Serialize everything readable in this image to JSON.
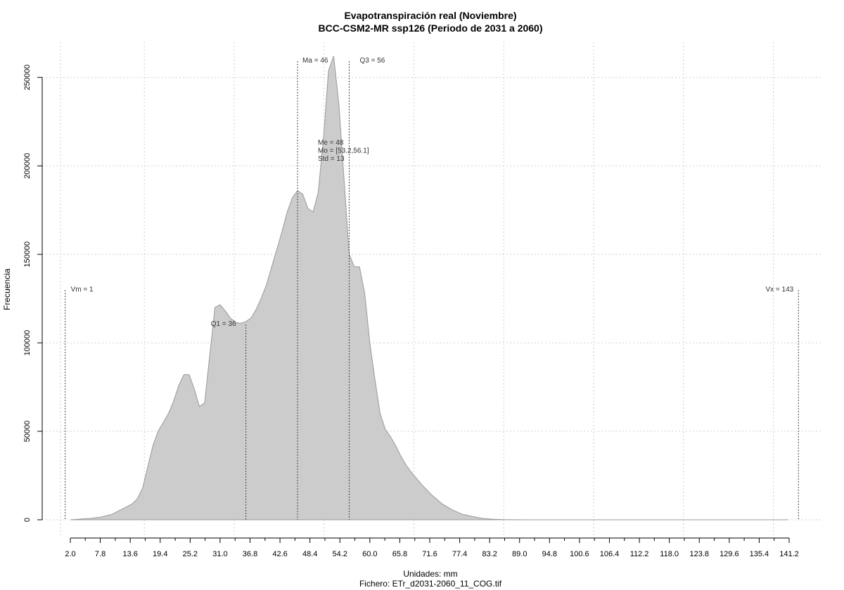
{
  "chart_data": {
    "type": "area",
    "title": "Evapotranspiración real (Noviembre)",
    "subtitle": "BCC-CSM2-MR ssp126 (Periodo de 2031 a 2060)",
    "xlabel": "Unidades: mm",
    "caption": "Fichero: ETr_d2031-2060_11_COG.tif",
    "ylabel": "Frecuencia",
    "xlim": [
      2.0,
      141.2
    ],
    "ylim": [
      0,
      260000
    ],
    "x_ticks": [
      "2.0",
      "7.8",
      "13.6",
      "19.4",
      "25.2",
      "31.0",
      "36.8",
      "42.6",
      "48.4",
      "54.2",
      "60.0",
      "65.8",
      "71.6",
      "77.4",
      "83.2",
      "89.0",
      "94.8",
      "100.6",
      "106.4",
      "112.2",
      "118.0",
      "123.8",
      "129.6",
      "135.4",
      "141.2"
    ],
    "y_ticks": [
      "0",
      "50000",
      "100000",
      "150000",
      "200000",
      "250000"
    ],
    "y_tick_values": [
      0,
      50000,
      100000,
      150000,
      200000,
      250000
    ],
    "grid": true,
    "fill_color": "#cccccc",
    "line_color": "#999999",
    "x": [
      2,
      4,
      6,
      8,
      10,
      12,
      14,
      15,
      16,
      17,
      18,
      19,
      20,
      21,
      22,
      23,
      24,
      25,
      26,
      27,
      28,
      29,
      30,
      31,
      32,
      33,
      34,
      35,
      36,
      37,
      38,
      39,
      40,
      41,
      42,
      43,
      44,
      45,
      46,
      47,
      48,
      49,
      50,
      51,
      52,
      53,
      54,
      55,
      56,
      57,
      58,
      59,
      60,
      61,
      62,
      63,
      64,
      65,
      66,
      67,
      68,
      69,
      70,
      72,
      74,
      76,
      78,
      80,
      82,
      84,
      86,
      88,
      90,
      92,
      95,
      100,
      110,
      120,
      130,
      141
    ],
    "y": [
      0,
      400,
      800,
      1600,
      3000,
      6000,
      9000,
      12000,
      18000,
      30000,
      42000,
      50000,
      55000,
      60000,
      67000,
      76000,
      82000,
      82000,
      74000,
      64000,
      66000,
      93000,
      120000,
      121500,
      118000,
      114000,
      111500,
      111000,
      112000,
      114000,
      119000,
      125500,
      133000,
      143000,
      153000,
      163000,
      174000,
      182000,
      186000,
      184000,
      176000,
      174000,
      185000,
      215000,
      254000,
      262000,
      235000,
      193000,
      150000,
      143000,
      143000,
      128000,
      100000,
      79000,
      60000,
      51000,
      47000,
      42000,
      36000,
      31000,
      27000,
      23500,
      20000,
      14000,
      9000,
      5500,
      3000,
      1800,
      700,
      300,
      100,
      50,
      0,
      0,
      0,
      0,
      0,
      0,
      0,
      0
    ],
    "annotations": [
      {
        "label": "Vm = 1",
        "x": 1
      },
      {
        "label": "Q1 = 36",
        "x": 36
      },
      {
        "label": "Ma = 46",
        "x": 46
      },
      {
        "label": "Q3 = 56",
        "x": 56
      },
      {
        "label": "Vx = 143",
        "x": 143
      }
    ],
    "stats": [
      "Me = 48",
      "Mo = [53.2,56.1]",
      "Std = 13"
    ]
  }
}
